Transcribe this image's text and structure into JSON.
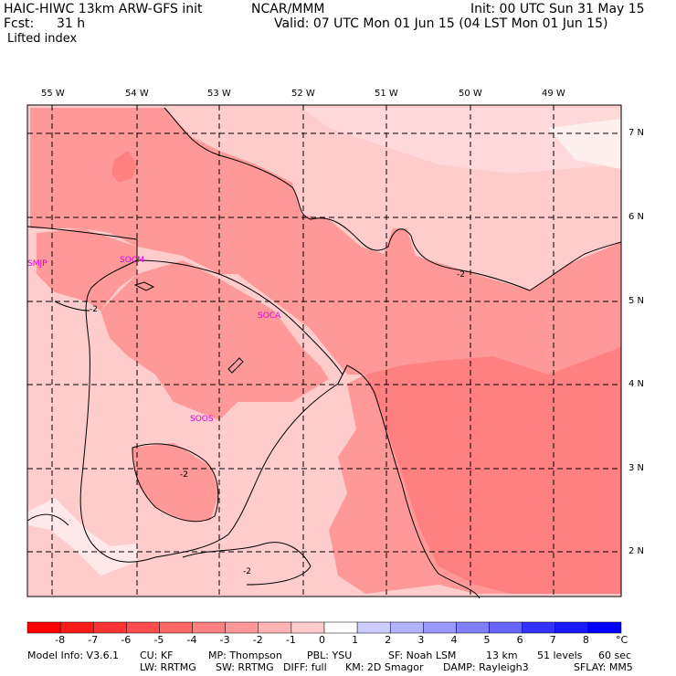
{
  "header": {
    "model": "HAIC-HIWC 13km ARW-GFS init",
    "org": "NCAR/MMM",
    "init": "Init: 00 UTC Sun 31 May 15",
    "fcst_label": "Fcst:",
    "fcst_value": "31 h",
    "valid": "Valid: 07 UTC Mon 01 Jun 15 (04 LST Mon 01 Jun 15)",
    "field": "Lifted index"
  },
  "lon_labels": [
    "55 W",
    "54 W",
    "53 W",
    "52 W",
    "51 W",
    "50 W",
    "49 W"
  ],
  "lat_labels": [
    "7 N",
    "6 N",
    "5 N",
    "4 N",
    "3 N",
    "2 N"
  ],
  "stations": [
    "SMJP",
    "SOCM",
    "SOCA",
    "SOOS"
  ],
  "contour_labels": [
    "-2",
    "-2",
    "-2",
    "-2"
  ],
  "colorbar": {
    "values": [
      "-8",
      "-7",
      "-6",
      "-5",
      "-4",
      "-3",
      "-2",
      "-1",
      "0",
      "1",
      "2",
      "3",
      "4",
      "5",
      "6",
      "7",
      "8"
    ],
    "unit": "°C",
    "colors": [
      "#ff0000",
      "#ff1a1a",
      "#ff3333",
      "#ff4d4d",
      "#ff6666",
      "#ff8080",
      "#ff9999",
      "#ffb3b3",
      "#ffcccc",
      "#ffffff",
      "#ccccff",
      "#b3b3ff",
      "#9999ff",
      "#8080ff",
      "#6666ff",
      "#3333ff",
      "#1a1aff",
      "#0000ff"
    ]
  },
  "footer": {
    "line1": [
      "Model Info: V3.6.1",
      "CU: KF",
      "MP: Thompson",
      "PBL: YSU",
      "SF: Noah LSM",
      "13 km",
      "51 levels",
      "60 sec"
    ],
    "line2": [
      "LW: RRTMG",
      "SW: RRTMG",
      "DIFF: full",
      "KM: 2D Smagor",
      "DAMP: Rayleigh3",
      "SFLAY: MM5"
    ]
  }
}
